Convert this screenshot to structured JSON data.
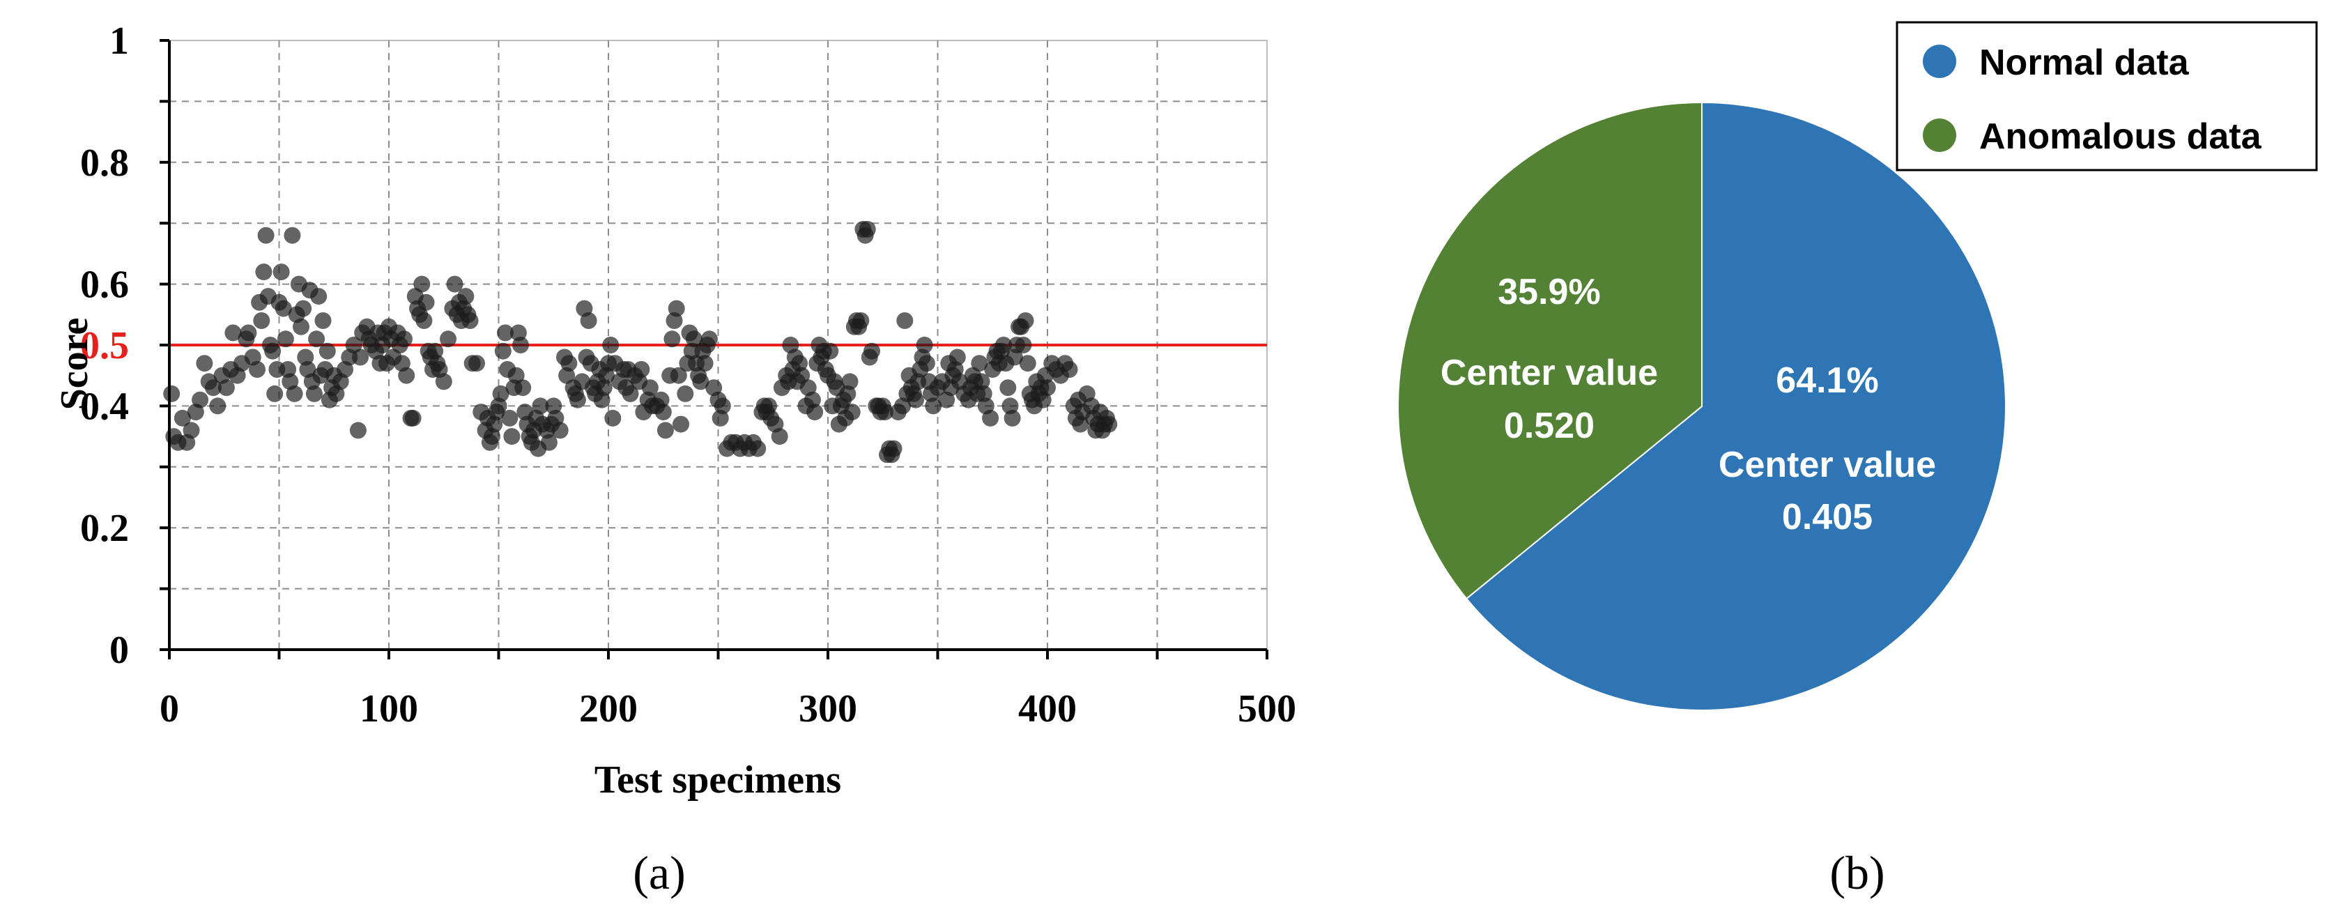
{
  "chart_data": [
    {
      "type": "scatter",
      "panel_label": "(a)",
      "xlabel": "Test specimens",
      "ylabel": "Score",
      "xlim": [
        0,
        500
      ],
      "ylim": [
        0,
        1
      ],
      "x_ticks": [
        "0",
        "100",
        "200",
        "300",
        "400",
        "500"
      ],
      "y_ticks": [
        "0",
        "0.2",
        "0.4",
        "0.6",
        "0.8",
        "1"
      ],
      "threshold": {
        "value": 0.5,
        "label": "0.5",
        "color": "#e8201c"
      },
      "grid": true,
      "marker_color": "#1a1a1a",
      "points": [
        [
          1,
          0.42
        ],
        [
          2,
          0.35
        ],
        [
          4,
          0.34
        ],
        [
          6,
          0.38
        ],
        [
          8,
          0.34
        ],
        [
          10,
          0.36
        ],
        [
          12,
          0.39
        ],
        [
          14,
          0.41
        ],
        [
          16,
          0.47
        ],
        [
          18,
          0.44
        ],
        [
          20,
          0.43
        ],
        [
          22,
          0.4
        ],
        [
          24,
          0.45
        ],
        [
          26,
          0.43
        ],
        [
          28,
          0.46
        ],
        [
          29,
          0.52
        ],
        [
          31,
          0.45
        ],
        [
          33,
          0.47
        ],
        [
          35,
          0.51
        ],
        [
          36,
          0.52
        ],
        [
          38,
          0.48
        ],
        [
          40,
          0.46
        ],
        [
          41,
          0.57
        ],
        [
          42,
          0.54
        ],
        [
          43,
          0.62
        ],
        [
          44,
          0.68
        ],
        [
          45,
          0.58
        ],
        [
          46,
          0.5
        ],
        [
          47,
          0.49
        ],
        [
          48,
          0.42
        ],
        [
          49,
          0.46
        ],
        [
          50,
          0.57
        ],
        [
          51,
          0.62
        ],
        [
          52,
          0.56
        ],
        [
          53,
          0.51
        ],
        [
          54,
          0.46
        ],
        [
          55,
          0.44
        ],
        [
          56,
          0.68
        ],
        [
          57,
          0.42
        ],
        [
          58,
          0.55
        ],
        [
          59,
          0.6
        ],
        [
          60,
          0.53
        ],
        [
          61,
          0.56
        ],
        [
          62,
          0.48
        ],
        [
          63,
          0.46
        ],
        [
          64,
          0.59
        ],
        [
          65,
          0.44
        ],
        [
          66,
          0.42
        ],
        [
          67,
          0.51
        ],
        [
          68,
          0.58
        ],
        [
          69,
          0.45
        ],
        [
          70,
          0.54
        ],
        [
          71,
          0.46
        ],
        [
          72,
          0.49
        ],
        [
          73,
          0.41
        ],
        [
          74,
          0.43
        ],
        [
          75,
          0.45
        ],
        [
          76,
          0.42
        ],
        [
          78,
          0.44
        ],
        [
          80,
          0.46
        ],
        [
          82,
          0.48
        ],
        [
          84,
          0.5
        ],
        [
          86,
          0.36
        ],
        [
          87,
          0.48
        ],
        [
          88,
          0.52
        ],
        [
          90,
          0.53
        ],
        [
          91,
          0.51
        ],
        [
          92,
          0.5
        ],
        [
          94,
          0.49
        ],
        [
          95,
          0.52
        ],
        [
          96,
          0.47
        ],
        [
          97,
          0.5
        ],
        [
          98,
          0.52
        ],
        [
          99,
          0.47
        ],
        [
          100,
          0.53
        ],
        [
          101,
          0.51
        ],
        [
          102,
          0.48
        ],
        [
          104,
          0.52
        ],
        [
          105,
          0.5
        ],
        [
          106,
          0.47
        ],
        [
          107,
          0.51
        ],
        [
          108,
          0.45
        ],
        [
          110,
          0.38
        ],
        [
          111,
          0.38
        ],
        [
          112,
          0.58
        ],
        [
          113,
          0.56
        ],
        [
          114,
          0.55
        ],
        [
          115,
          0.6
        ],
        [
          116,
          0.54
        ],
        [
          117,
          0.57
        ],
        [
          118,
          0.49
        ],
        [
          119,
          0.48
        ],
        [
          120,
          0.46
        ],
        [
          121,
          0.49
        ],
        [
          122,
          0.47
        ],
        [
          123,
          0.46
        ],
        [
          125,
          0.44
        ],
        [
          127,
          0.51
        ],
        [
          129,
          0.56
        ],
        [
          130,
          0.6
        ],
        [
          131,
          0.55
        ],
        [
          132,
          0.57
        ],
        [
          133,
          0.54
        ],
        [
          134,
          0.56
        ],
        [
          135,
          0.58
        ],
        [
          136,
          0.55
        ],
        [
          137,
          0.54
        ],
        [
          138,
          0.47
        ],
        [
          140,
          0.47
        ],
        [
          142,
          0.39
        ],
        [
          144,
          0.36
        ],
        [
          145,
          0.38
        ],
        [
          146,
          0.34
        ],
        [
          147,
          0.35
        ],
        [
          148,
          0.37
        ],
        [
          149,
          0.39
        ],
        [
          150,
          0.4
        ],
        [
          151,
          0.42
        ],
        [
          152,
          0.49
        ],
        [
          153,
          0.52
        ],
        [
          154,
          0.46
        ],
        [
          155,
          0.38
        ],
        [
          156,
          0.35
        ],
        [
          157,
          0.43
        ],
        [
          158,
          0.45
        ],
        [
          159,
          0.52
        ],
        [
          160,
          0.5
        ],
        [
          161,
          0.43
        ],
        [
          162,
          0.39
        ],
        [
          163,
          0.37
        ],
        [
          164,
          0.35
        ],
        [
          165,
          0.34
        ],
        [
          166,
          0.36
        ],
        [
          167,
          0.38
        ],
        [
          168,
          0.33
        ],
        [
          169,
          0.4
        ],
        [
          170,
          0.37
        ],
        [
          172,
          0.36
        ],
        [
          173,
          0.34
        ],
        [
          174,
          0.37
        ],
        [
          175,
          0.4
        ],
        [
          176,
          0.38
        ],
        [
          178,
          0.36
        ],
        [
          180,
          0.48
        ],
        [
          181,
          0.45
        ],
        [
          182,
          0.47
        ],
        [
          184,
          0.43
        ],
        [
          185,
          0.42
        ],
        [
          186,
          0.41
        ],
        [
          188,
          0.44
        ],
        [
          189,
          0.56
        ],
        [
          190,
          0.48
        ],
        [
          191,
          0.54
        ],
        [
          192,
          0.47
        ],
        [
          193,
          0.43
        ],
        [
          194,
          0.42
        ],
        [
          195,
          0.44
        ],
        [
          196,
          0.46
        ],
        [
          197,
          0.41
        ],
        [
          198,
          0.43
        ],
        [
          199,
          0.45
        ],
        [
          200,
          0.47
        ],
        [
          201,
          0.5
        ],
        [
          202,
          0.38
        ],
        [
          203,
          0.47
        ],
        [
          205,
          0.44
        ],
        [
          207,
          0.46
        ],
        [
          208,
          0.43
        ],
        [
          209,
          0.46
        ],
        [
          210,
          0.42
        ],
        [
          212,
          0.45
        ],
        [
          214,
          0.44
        ],
        [
          215,
          0.46
        ],
        [
          216,
          0.39
        ],
        [
          218,
          0.41
        ],
        [
          219,
          0.43
        ],
        [
          220,
          0.4
        ],
        [
          222,
          0.4
        ],
        [
          224,
          0.41
        ],
        [
          225,
          0.39
        ],
        [
          226,
          0.36
        ],
        [
          228,
          0.45
        ],
        [
          229,
          0.51
        ],
        [
          230,
          0.54
        ],
        [
          231,
          0.56
        ],
        [
          232,
          0.45
        ],
        [
          233,
          0.37
        ],
        [
          235,
          0.42
        ],
        [
          236,
          0.47
        ],
        [
          237,
          0.52
        ],
        [
          238,
          0.49
        ],
        [
          239,
          0.51
        ],
        [
          240,
          0.47
        ],
        [
          241,
          0.45
        ],
        [
          242,
          0.44
        ],
        [
          243,
          0.49
        ],
        [
          244,
          0.47
        ],
        [
          245,
          0.5
        ],
        [
          246,
          0.51
        ],
        [
          248,
          0.43
        ],
        [
          250,
          0.41
        ],
        [
          251,
          0.38
        ],
        [
          252,
          0.4
        ],
        [
          254,
          0.33
        ],
        [
          256,
          0.34
        ],
        [
          258,
          0.34
        ],
        [
          260,
          0.33
        ],
        [
          262,
          0.34
        ],
        [
          264,
          0.33
        ],
        [
          266,
          0.34
        ],
        [
          268,
          0.33
        ],
        [
          270,
          0.39
        ],
        [
          271,
          0.4
        ],
        [
          272,
          0.39
        ],
        [
          273,
          0.4
        ],
        [
          274,
          0.38
        ],
        [
          276,
          0.37
        ],
        [
          278,
          0.35
        ],
        [
          279,
          0.43
        ],
        [
          281,
          0.45
        ],
        [
          282,
          0.44
        ],
        [
          283,
          0.5
        ],
        [
          284,
          0.46
        ],
        [
          285,
          0.48
        ],
        [
          286,
          0.44
        ],
        [
          287,
          0.47
        ],
        [
          288,
          0.45
        ],
        [
          290,
          0.4
        ],
        [
          291,
          0.43
        ],
        [
          293,
          0.41
        ],
        [
          294,
          0.39
        ],
        [
          295,
          0.47
        ],
        [
          296,
          0.5
        ],
        [
          297,
          0.48
        ],
        [
          298,
          0.49
        ],
        [
          299,
          0.46
        ],
        [
          300,
          0.45
        ],
        [
          301,
          0.49
        ],
        [
          302,
          0.4
        ],
        [
          303,
          0.44
        ],
        [
          304,
          0.43
        ],
        [
          305,
          0.37
        ],
        [
          306,
          0.4
        ],
        [
          307,
          0.41
        ],
        [
          308,
          0.38
        ],
        [
          309,
          0.42
        ],
        [
          310,
          0.44
        ],
        [
          311,
          0.39
        ],
        [
          312,
          0.53
        ],
        [
          313,
          0.54
        ],
        [
          314,
          0.53
        ],
        [
          315,
          0.54
        ],
        [
          316,
          0.69
        ],
        [
          317,
          0.68
        ],
        [
          318,
          0.69
        ],
        [
          319,
          0.48
        ],
        [
          320,
          0.49
        ],
        [
          322,
          0.4
        ],
        [
          323,
          0.4
        ],
        [
          324,
          0.39
        ],
        [
          325,
          0.4
        ],
        [
          326,
          0.39
        ],
        [
          327,
          0.32
        ],
        [
          328,
          0.33
        ],
        [
          329,
          0.32
        ],
        [
          330,
          0.33
        ],
        [
          332,
          0.39
        ],
        [
          334,
          0.4
        ],
        [
          335,
          0.54
        ],
        [
          336,
          0.42
        ],
        [
          337,
          0.45
        ],
        [
          338,
          0.43
        ],
        [
          339,
          0.42
        ],
        [
          340,
          0.41
        ],
        [
          341,
          0.44
        ],
        [
          342,
          0.46
        ],
        [
          343,
          0.48
        ],
        [
          344,
          0.5
        ],
        [
          345,
          0.47
        ],
        [
          346,
          0.44
        ],
        [
          347,
          0.42
        ],
        [
          348,
          0.4
        ],
        [
          350,
          0.43
        ],
        [
          352,
          0.44
        ],
        [
          354,
          0.41
        ],
        [
          355,
          0.47
        ],
        [
          356,
          0.43
        ],
        [
          357,
          0.45
        ],
        [
          358,
          0.46
        ],
        [
          359,
          0.48
        ],
        [
          360,
          0.44
        ],
        [
          362,
          0.42
        ],
        [
          364,
          0.41
        ],
        [
          365,
          0.43
        ],
        [
          366,
          0.45
        ],
        [
          367,
          0.44
        ],
        [
          368,
          0.42
        ],
        [
          369,
          0.47
        ],
        [
          370,
          0.44
        ],
        [
          371,
          0.42
        ],
        [
          372,
          0.4
        ],
        [
          374,
          0.38
        ],
        [
          375,
          0.46
        ],
        [
          376,
          0.48
        ],
        [
          377,
          0.49
        ],
        [
          378,
          0.47
        ],
        [
          379,
          0.49
        ],
        [
          380,
          0.5
        ],
        [
          381,
          0.47
        ],
        [
          382,
          0.43
        ],
        [
          383,
          0.4
        ],
        [
          384,
          0.38
        ],
        [
          385,
          0.48
        ],
        [
          386,
          0.5
        ],
        [
          387,
          0.53
        ],
        [
          388,
          0.53
        ],
        [
          389,
          0.5
        ],
        [
          390,
          0.54
        ],
        [
          391,
          0.47
        ],
        [
          392,
          0.42
        ],
        [
          393,
          0.41
        ],
        [
          394,
          0.4
        ],
        [
          395,
          0.44
        ],
        [
          396,
          0.42
        ],
        [
          397,
          0.43
        ],
        [
          398,
          0.41
        ],
        [
          399,
          0.45
        ],
        [
          400,
          0.43
        ],
        [
          402,
          0.47
        ],
        [
          404,
          0.46
        ],
        [
          406,
          0.45
        ],
        [
          408,
          0.47
        ],
        [
          410,
          0.46
        ],
        [
          412,
          0.4
        ],
        [
          413,
          0.38
        ],
        [
          414,
          0.41
        ],
        [
          415,
          0.37
        ],
        [
          416,
          0.39
        ],
        [
          418,
          0.42
        ],
        [
          420,
          0.4
        ],
        [
          421,
          0.38
        ],
        [
          422,
          0.36
        ],
        [
          423,
          0.37
        ],
        [
          424,
          0.39
        ],
        [
          425,
          0.36
        ],
        [
          426,
          0.37
        ],
        [
          427,
          0.38
        ],
        [
          428,
          0.37
        ]
      ]
    },
    {
      "type": "pie",
      "panel_label": "(b)",
      "legend_position": "top-right",
      "slices": [
        {
          "name": "Normal data",
          "value": 64.1,
          "percent_label": "64.1%",
          "center_label": "Center value",
          "center_value": "0.405",
          "color": "#2e75b6"
        },
        {
          "name": "Anomalous data",
          "value": 35.9,
          "percent_label": "35.9%",
          "center_label": "Center value",
          "center_value": "0.520",
          "color": "#548235"
        }
      ]
    }
  ]
}
